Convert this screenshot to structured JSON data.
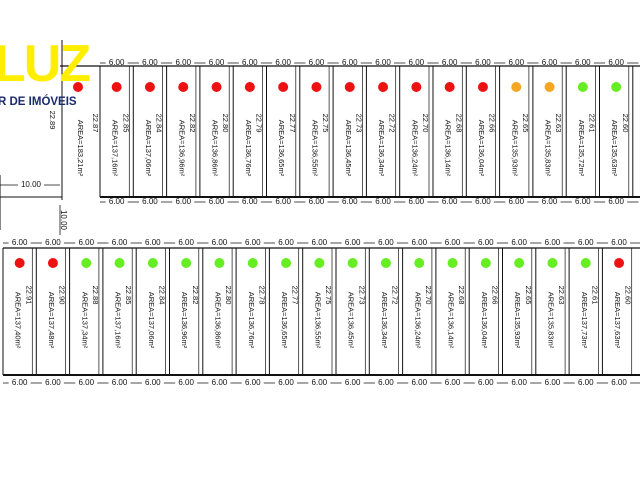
{
  "logo": {
    "main": "LUZ",
    "sub": "R DE IMÓVEIS"
  },
  "colors": {
    "sold": "#ee1111",
    "reserved": "#f5a623",
    "available": "#66ee22",
    "line": "#111111"
  },
  "frontage_label": "6.00",
  "road_labels": {
    "horizontal": "10.00",
    "vertical": "10.00",
    "left_depth": "22.89"
  },
  "top_row": {
    "corner_lot": {
      "area": "AREA=183,21m²",
      "depth": "22.87",
      "status": "sold"
    },
    "lots": [
      {
        "area": "AREA=137,16m²",
        "depth": "22.85",
        "status": "sold"
      },
      {
        "area": "AREA=137,06m²",
        "depth": "22.84",
        "status": "sold"
      },
      {
        "area": "AREA=136,96m²",
        "depth": "22.82",
        "status": "sold"
      },
      {
        "area": "AREA=136,86m²",
        "depth": "22.80",
        "status": "sold"
      },
      {
        "area": "AREA=136,76m²",
        "depth": "22.79",
        "status": "sold"
      },
      {
        "area": "AREA=136,65m²",
        "depth": "22.77",
        "status": "sold"
      },
      {
        "area": "AREA=136,55m²",
        "depth": "22.75",
        "status": "sold"
      },
      {
        "area": "AREA=136,45m²",
        "depth": "22.73",
        "status": "sold"
      },
      {
        "area": "AREA=136,34m²",
        "depth": "22.72",
        "status": "sold"
      },
      {
        "area": "AREA=136,24m²",
        "depth": "22.70",
        "status": "sold"
      },
      {
        "area": "AREA=136,14m²",
        "depth": "22.68",
        "status": "sold"
      },
      {
        "area": "AREA=136,04m²",
        "depth": "22.66",
        "status": "sold"
      },
      {
        "area": "AREA=135,93m²",
        "depth": "22.65",
        "status": "reserved"
      },
      {
        "area": "AREA=135,83m²",
        "depth": "22.63",
        "status": "reserved"
      },
      {
        "area": "AREA=135,72m²",
        "depth": "22.61",
        "status": "available"
      },
      {
        "area": "AREA=135,63m²",
        "depth": "22.60",
        "status": "available"
      },
      {
        "area": "",
        "depth": "",
        "status": "sold"
      }
    ]
  },
  "bottom_row": {
    "lots": [
      {
        "area": "AREA=137,40m²",
        "depth": "22.91",
        "status": "sold"
      },
      {
        "area": "AREA=137,48m²",
        "depth": "22.90",
        "status": "sold"
      },
      {
        "area": "AREA=137,34m²",
        "depth": "22.88",
        "status": "available"
      },
      {
        "area": "AREA=137,16m²",
        "depth": "22.85",
        "status": "available"
      },
      {
        "area": "AREA=137,06m²",
        "depth": "22.84",
        "status": "available"
      },
      {
        "area": "AREA=136,96m²",
        "depth": "22.82",
        "status": "available"
      },
      {
        "area": "AREA=136,86m²",
        "depth": "22.80",
        "status": "available"
      },
      {
        "area": "AREA=136,76m²",
        "depth": "22.78",
        "status": "available"
      },
      {
        "area": "AREA=136,65m²",
        "depth": "22.77",
        "status": "available"
      },
      {
        "area": "AREA=136,55m²",
        "depth": "22.75",
        "status": "available"
      },
      {
        "area": "AREA=136,45m²",
        "depth": "22.73",
        "status": "available"
      },
      {
        "area": "AREA=136,34m²",
        "depth": "22.72",
        "status": "available"
      },
      {
        "area": "AREA=136,24m²",
        "depth": "22.70",
        "status": "available"
      },
      {
        "area": "AREA=136,14m²",
        "depth": "22.68",
        "status": "available"
      },
      {
        "area": "AREA=136,04m²",
        "depth": "22.66",
        "status": "available"
      },
      {
        "area": "AREA=135,93m²",
        "depth": "22.65",
        "status": "available"
      },
      {
        "area": "AREA=135,83m²",
        "depth": "22.63",
        "status": "available"
      },
      {
        "area": "AREA=137,73m²",
        "depth": "22.61",
        "status": "available"
      },
      {
        "area": "AREA=137,63m²",
        "depth": "22.60",
        "status": "sold"
      }
    ]
  }
}
